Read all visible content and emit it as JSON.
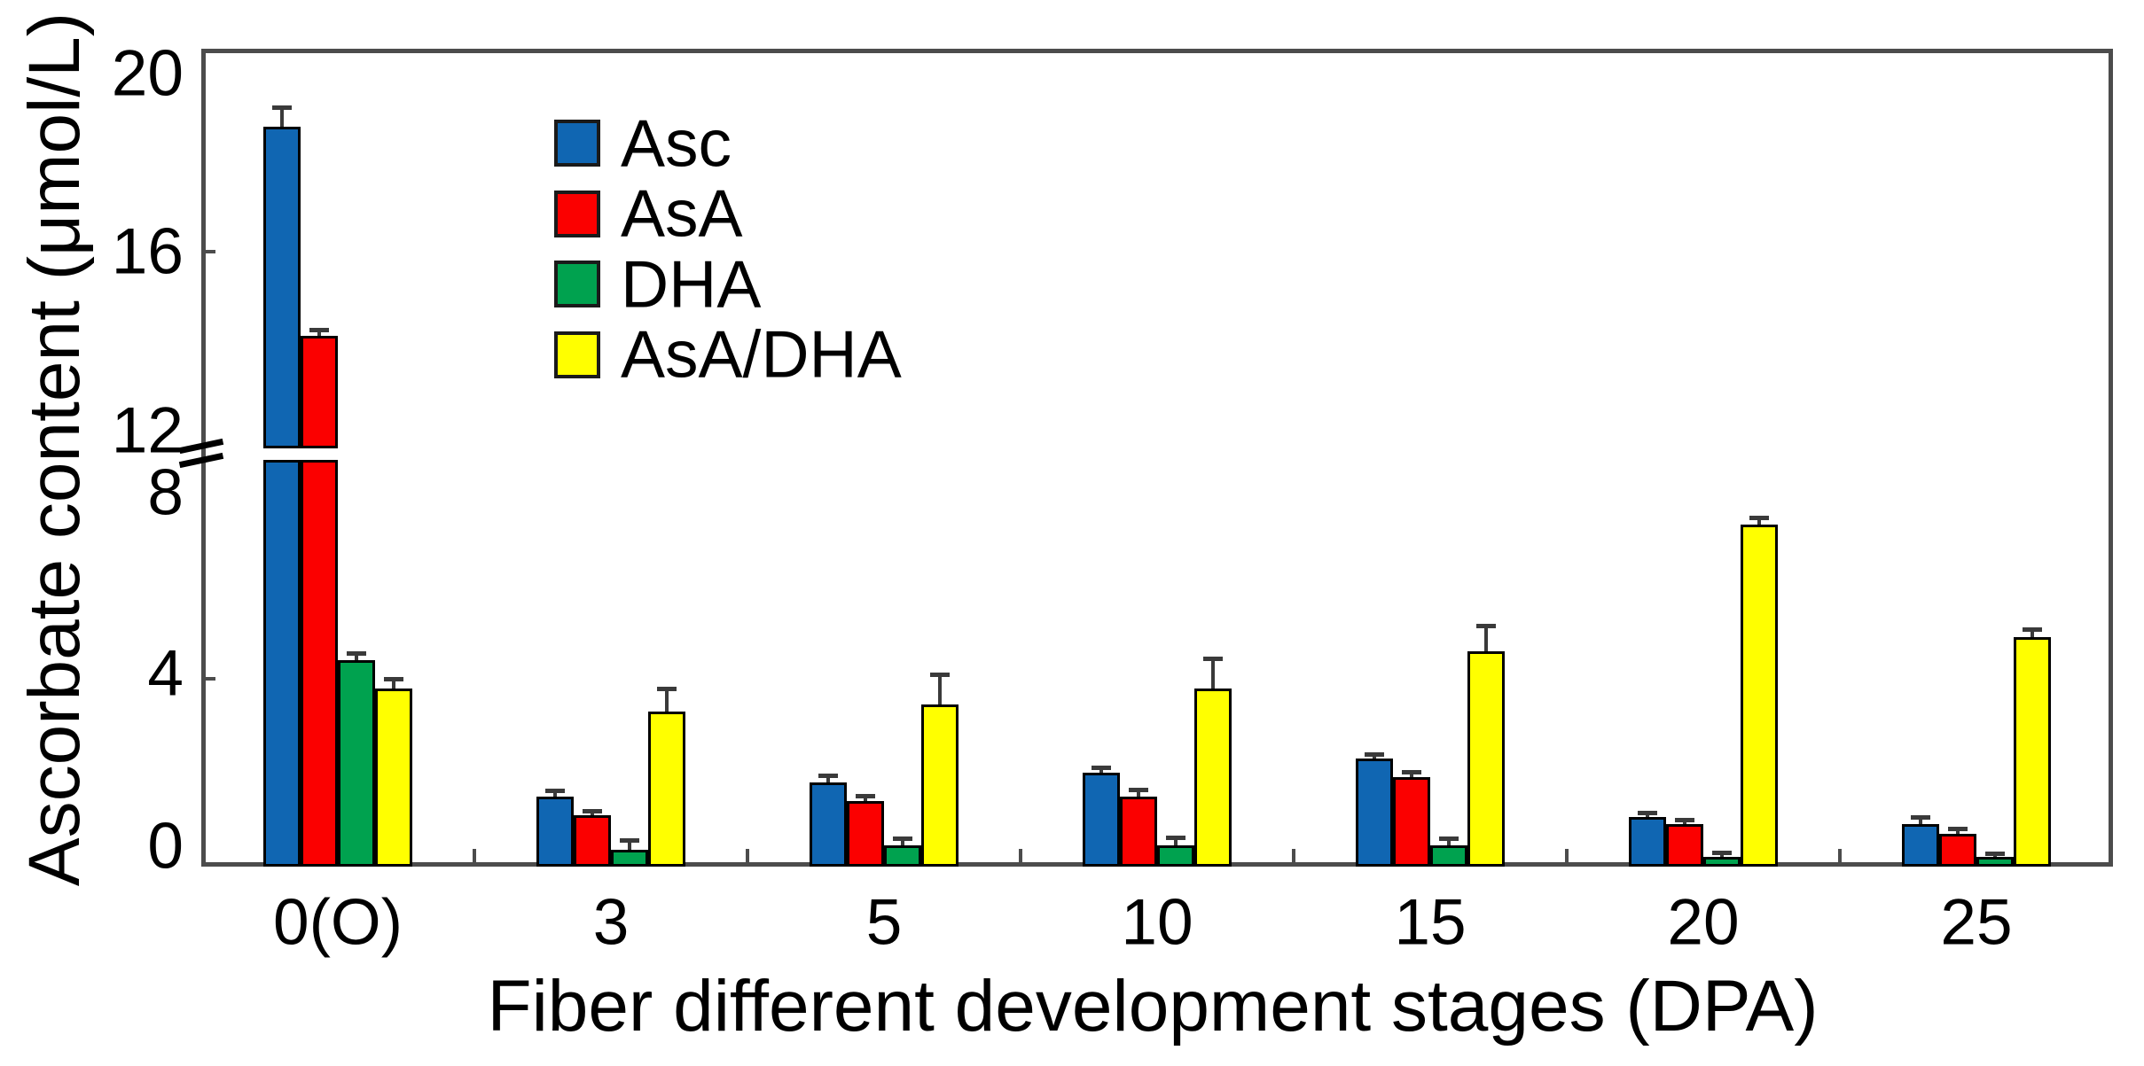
{
  "chart_data": {
    "type": "bar",
    "title": "",
    "xlabel": "Fiber different development stages (DPA)",
    "ylabel": "Ascorbate content (μmol/L)",
    "categories": [
      "0(O)",
      "3",
      "5",
      "10",
      "15",
      "20",
      "25"
    ],
    "series": [
      {
        "name": "Asc",
        "color": "#1066b2",
        "values": [
          18.8,
          1.5,
          1.8,
          2.0,
          2.3,
          1.05,
          0.9
        ],
        "errors": [
          0.45,
          0.12,
          0.15,
          0.12,
          0.1,
          0.1,
          0.15
        ]
      },
      {
        "name": "AsA",
        "color": "#fb0000",
        "values": [
          14.1,
          1.1,
          1.4,
          1.5,
          1.9,
          0.9,
          0.7
        ],
        "errors": [
          0.15,
          0.1,
          0.12,
          0.15,
          0.12,
          0.1,
          0.12
        ]
      },
      {
        "name": "DHA",
        "color": "#00a24f",
        "values": [
          4.4,
          0.35,
          0.45,
          0.45,
          0.45,
          0.2,
          0.2
        ],
        "errors": [
          0.15,
          0.22,
          0.15,
          0.17,
          0.15,
          0.1,
          0.08
        ]
      },
      {
        "name": "AsA/DHA",
        "color": "#ffff00",
        "values": [
          3.8,
          3.3,
          3.45,
          3.8,
          4.6,
          7.3,
          4.9
        ],
        "errors": [
          0.2,
          0.5,
          0.65,
          0.65,
          0.55,
          0.15,
          0.17
        ]
      }
    ],
    "error_bars": "upper one-sided with caps",
    "y_axis": {
      "tick_labels": [
        "0",
        "4",
        "8",
        "12",
        "16",
        "20"
      ],
      "broken_axis": true,
      "break_between": [
        8,
        12
      ],
      "range_shown": [
        0,
        20
      ]
    },
    "x_axis": {
      "tick_labels": [
        "0(O)",
        "3",
        "5",
        "10",
        "15",
        "20",
        "25"
      ]
    },
    "legend_position": "inside top-left",
    "grid": false,
    "frame_color": "#4c4c4c"
  }
}
